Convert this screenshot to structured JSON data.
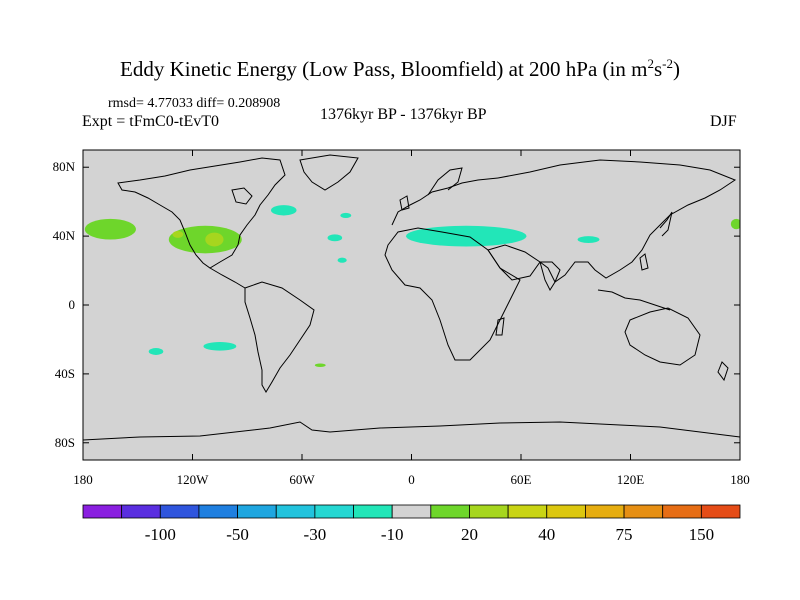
{
  "header": {
    "title_main": "Eddy Kinetic Energy (Low Pass, Bloomfield) at 200 hPa (in m",
    "title_sup1": "2",
    "title_s": "s",
    "title_sup2": "-2",
    "title_end": ")",
    "stats": "rmsd= 4.77033 diff= 0.208908",
    "expt": "Expt = tFmC0-tEvT0",
    "center_label": "1376kyr BP - 1376kyr BP",
    "season": "DJF"
  },
  "chart_data": {
    "type": "heatmap",
    "projection": "cylindrical-equidistant",
    "xlim": [
      -180,
      180
    ],
    "ylim": [
      -90,
      90
    ],
    "background_color": "#d3d3d3",
    "x_ticks": [
      {
        "value": -180,
        "label": "180"
      },
      {
        "value": -120,
        "label": "120W"
      },
      {
        "value": -60,
        "label": "60W"
      },
      {
        "value": 0,
        "label": "0"
      },
      {
        "value": 60,
        "label": "60E"
      },
      {
        "value": 120,
        "label": "120E"
      },
      {
        "value": 180,
        "label": "180"
      }
    ],
    "y_ticks": [
      {
        "value": 80,
        "label": "80N"
      },
      {
        "value": 40,
        "label": "40N"
      },
      {
        "value": 0,
        "label": "0"
      },
      {
        "value": -40,
        "label": "40S"
      },
      {
        "value": -80,
        "label": "80S"
      }
    ],
    "colorbar": {
      "colors": [
        "#8a1fe0",
        "#5a2ee0",
        "#2f55dd",
        "#1f7fe0",
        "#1fa6e0",
        "#22c3dd",
        "#25d7d2",
        "#22e6b8",
        "#d3d3d3",
        "#6ed62b",
        "#a6d61e",
        "#c9d414",
        "#dcc70f",
        "#e6ad10",
        "#e68f13",
        "#e66d15",
        "#e54c17"
      ],
      "labels": [
        {
          "after_index": 1,
          "label": "-100"
        },
        {
          "after_index": 3,
          "label": "-50"
        },
        {
          "after_index": 5,
          "label": "-30"
        },
        {
          "after_index": 7,
          "label": "-10"
        },
        {
          "after_index": 9,
          "label": "20"
        },
        {
          "after_index": 11,
          "label": "40"
        },
        {
          "after_index": 13,
          "label": "75"
        },
        {
          "after_index": 15,
          "label": "150"
        }
      ]
    },
    "anomalies": [
      {
        "name": "north-pacific-positive-west",
        "sign": "positive",
        "level": "20",
        "color": "#6ed62b",
        "lon": -165,
        "lat": 44,
        "rlon": 14,
        "rlat": 6
      },
      {
        "name": "north-pacific-positive-east",
        "sign": "positive",
        "level": "20",
        "color": "#6ed62b",
        "lon": -113,
        "lat": 38,
        "rlon": 20,
        "rlat": 8
      },
      {
        "name": "north-pacific-core",
        "sign": "positive",
        "level": "30",
        "color": "#a6d61e",
        "lon": -108,
        "lat": 38,
        "rlon": 5,
        "rlat": 4
      },
      {
        "name": "north-pacific-core-west",
        "sign": "positive",
        "level": "30",
        "color": "#a6d61e",
        "lon": -128,
        "lat": 41,
        "rlon": 3,
        "rlat": 2
      },
      {
        "name": "dateline-east-positive",
        "sign": "positive",
        "level": "20",
        "color": "#6ed62b",
        "lon": 178,
        "lat": 47,
        "rlon": 3,
        "rlat": 3
      },
      {
        "name": "labrador-negative",
        "sign": "negative",
        "level": "-10",
        "color": "#22e6b8",
        "lon": -70,
        "lat": 55,
        "rlon": 7,
        "rlat": 3
      },
      {
        "name": "north-atlantic-negative-a",
        "sign": "negative",
        "level": "-10",
        "color": "#22e6b8",
        "lon": -36,
        "lat": 52,
        "rlon": 3,
        "rlat": 1.5
      },
      {
        "name": "north-atlantic-negative-b",
        "sign": "negative",
        "level": "-10",
        "color": "#22e6b8",
        "lon": -42,
        "lat": 39,
        "rlon": 4,
        "rlat": 2
      },
      {
        "name": "atlantic-30n-negative",
        "sign": "negative",
        "level": "-10",
        "color": "#22e6b8",
        "lon": -38,
        "lat": 26,
        "rlon": 2.5,
        "rlat": 1.5
      },
      {
        "name": "mediterranean-negative",
        "sign": "negative",
        "level": "-10",
        "color": "#22e6b8",
        "lon": 30,
        "lat": 40,
        "rlon": 33,
        "rlat": 6
      },
      {
        "name": "tibet-negative",
        "sign": "negative",
        "level": "-10",
        "color": "#22e6b8",
        "lon": 97,
        "lat": 38,
        "rlon": 6,
        "rlat": 2
      },
      {
        "name": "southeast-pacific-negative",
        "sign": "negative",
        "level": "-10",
        "color": "#22e6b8",
        "lon": -105,
        "lat": -24,
        "rlon": 9,
        "rlat": 2.5
      },
      {
        "name": "south-pacific-negative",
        "sign": "negative",
        "level": "-10",
        "color": "#22e6b8",
        "lon": -140,
        "lat": -27,
        "rlon": 4,
        "rlat": 2
      },
      {
        "name": "south-atlantic-positive",
        "sign": "positive",
        "level": "20",
        "color": "#6ed62b",
        "lon": -50,
        "lat": -35,
        "rlon": 3,
        "rlat": 1
      }
    ]
  }
}
